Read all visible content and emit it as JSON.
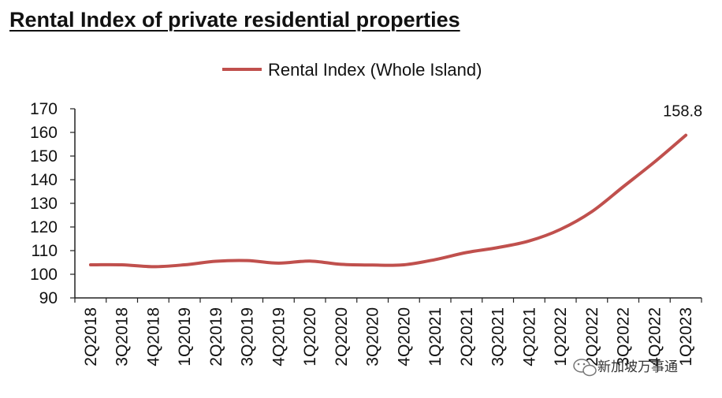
{
  "page": {
    "title": "Rental Index of private residential properties"
  },
  "chart_data": {
    "type": "line",
    "title": "",
    "xlabel": "",
    "ylabel": "",
    "categories": [
      "2Q2018",
      "3Q2018",
      "4Q2018",
      "1Q2019",
      "2Q2019",
      "3Q2019",
      "4Q2019",
      "1Q2020",
      "2Q2020",
      "3Q2020",
      "4Q2020",
      "1Q2021",
      "2Q2021",
      "3Q2021",
      "4Q2021",
      "1Q2022",
      "2Q2022",
      "3Q2022",
      "4Q2022",
      "1Q2023"
    ],
    "series": [
      {
        "name": "Rental Index (Whole Island)",
        "color": "#c0504d",
        "values": [
          104.0,
          104.0,
          103.2,
          104.0,
          105.5,
          105.8,
          104.7,
          105.6,
          104.2,
          103.9,
          104.0,
          106.2,
          109.2,
          111.3,
          114.1,
          119.0,
          126.5,
          137.0,
          147.5,
          158.8
        ]
      }
    ],
    "ylim": [
      90,
      170
    ],
    "yticks": [
      "90",
      "100",
      "110",
      "120",
      "130",
      "140",
      "150",
      "160",
      "170"
    ],
    "grid": false,
    "legend": "top-center",
    "annotations": [
      {
        "category": "1Q2023",
        "text": "158.8"
      }
    ]
  },
  "watermark": {
    "text": "新加坡万事通",
    "icon": "wechat-icon"
  }
}
